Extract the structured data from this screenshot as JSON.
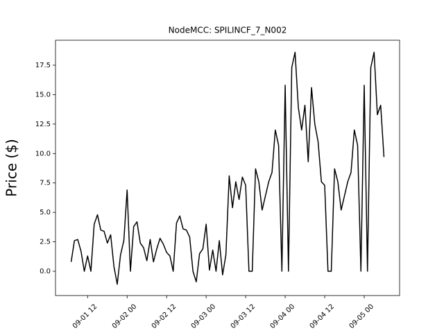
{
  "chart_data": {
    "type": "line",
    "title": "NodeMCC: SPILINCF_7_N002",
    "ylabel": "Price ($)",
    "x": [
      "09-01 07",
      "09-01 08",
      "09-01 09",
      "09-01 10",
      "09-01 11",
      "09-01 12",
      "09-01 13",
      "09-01 14",
      "09-01 15",
      "09-01 16",
      "09-01 17",
      "09-01 18",
      "09-01 19",
      "09-01 20",
      "09-01 21",
      "09-01 22",
      "09-01 23",
      "09-02 00",
      "09-02 01",
      "09-02 02",
      "09-02 03",
      "09-02 04",
      "09-02 05",
      "09-02 06",
      "09-02 07",
      "09-02 08",
      "09-02 09",
      "09-02 10",
      "09-02 11",
      "09-02 12",
      "09-02 13",
      "09-02 14",
      "09-02 15",
      "09-02 16",
      "09-02 17",
      "09-02 18",
      "09-02 19",
      "09-02 20",
      "09-02 21",
      "09-02 22",
      "09-02 23",
      "09-03 00",
      "09-03 01",
      "09-03 02",
      "09-03 03",
      "09-03 04",
      "09-03 05",
      "09-03 06",
      "09-03 07",
      "09-03 08",
      "09-03 09",
      "09-03 10",
      "09-03 11",
      "09-03 12",
      "09-03 13",
      "09-03 14",
      "09-03 15",
      "09-03 16",
      "09-03 17",
      "09-03 18",
      "09-03 19",
      "09-03 20",
      "09-03 21",
      "09-03 22",
      "09-03 23",
      "09-04 00",
      "09-04 01",
      "09-04 02",
      "09-04 03",
      "09-04 04",
      "09-04 05",
      "09-04 06",
      "09-04 07",
      "09-04 08",
      "09-04 09",
      "09-04 10",
      "09-04 11",
      "09-04 12",
      "09-04 13",
      "09-04 14",
      "09-04 15",
      "09-04 16",
      "09-04 17",
      "09-04 18",
      "09-04 19",
      "09-04 20",
      "09-04 21",
      "09-04 22",
      "09-04 23",
      "09-05 00",
      "09-05 01",
      "09-05 02",
      "09-05 03",
      "09-05 04",
      "09-05 05",
      "09-05 06"
    ],
    "series": [
      {
        "color": "#000000",
        "values": [
          0.8,
          2.6,
          2.7,
          1.7,
          0,
          1.3,
          0,
          4.0,
          4.8,
          3.5,
          3.4,
          2.4,
          3.1,
          0.4,
          -1.1,
          1.4,
          2.6,
          6.9,
          0,
          3.8,
          4.2,
          2.4,
          2.0,
          0.9,
          2.7,
          0.8,
          1.9,
          2.8,
          2.3,
          1.6,
          1.3,
          0,
          4.1,
          4.7,
          3.6,
          3.5,
          2.9,
          0,
          -0.9,
          1.5,
          1.9,
          4.0,
          0.1,
          1.8,
          0,
          2.6,
          -0.3,
          1.4,
          8.1,
          5.4,
          7.6,
          6.1,
          8.0,
          7.3,
          0,
          0,
          8.7,
          7.6,
          5.2,
          6.4,
          7.6,
          8.4,
          12.0,
          10.7,
          0,
          15.8,
          0,
          17.3,
          18.6,
          13.9,
          12.0,
          14.1,
          9.3,
          15.6,
          12.5,
          11.0,
          7.6,
          7.3,
          0,
          0,
          8.7,
          7.6,
          5.2,
          6.4,
          7.6,
          8.4,
          12.0,
          10.7,
          0,
          15.8,
          0,
          17.3,
          18.6,
          13.3,
          14.1,
          9.7
        ]
      }
    ],
    "xlim": [
      "09-01 02:15",
      "09-05 10:45"
    ],
    "xticks": [
      "09-01 12",
      "09-02 00",
      "09-02 12",
      "09-03 00",
      "09-03 12",
      "09-04 00",
      "09-04 12",
      "09-05 00"
    ],
    "ylim": [
      -2.06,
      19.62
    ],
    "yticks": [
      {
        "value": 0,
        "label": "0.0"
      },
      2.5,
      {
        "value": 5,
        "label": "5.0"
      },
      7.5,
      {
        "value": 10,
        "label": "10.0"
      },
      12.5,
      {
        "value": 15,
        "label": "15.0"
      },
      17.5
    ],
    "grid": false
  }
}
